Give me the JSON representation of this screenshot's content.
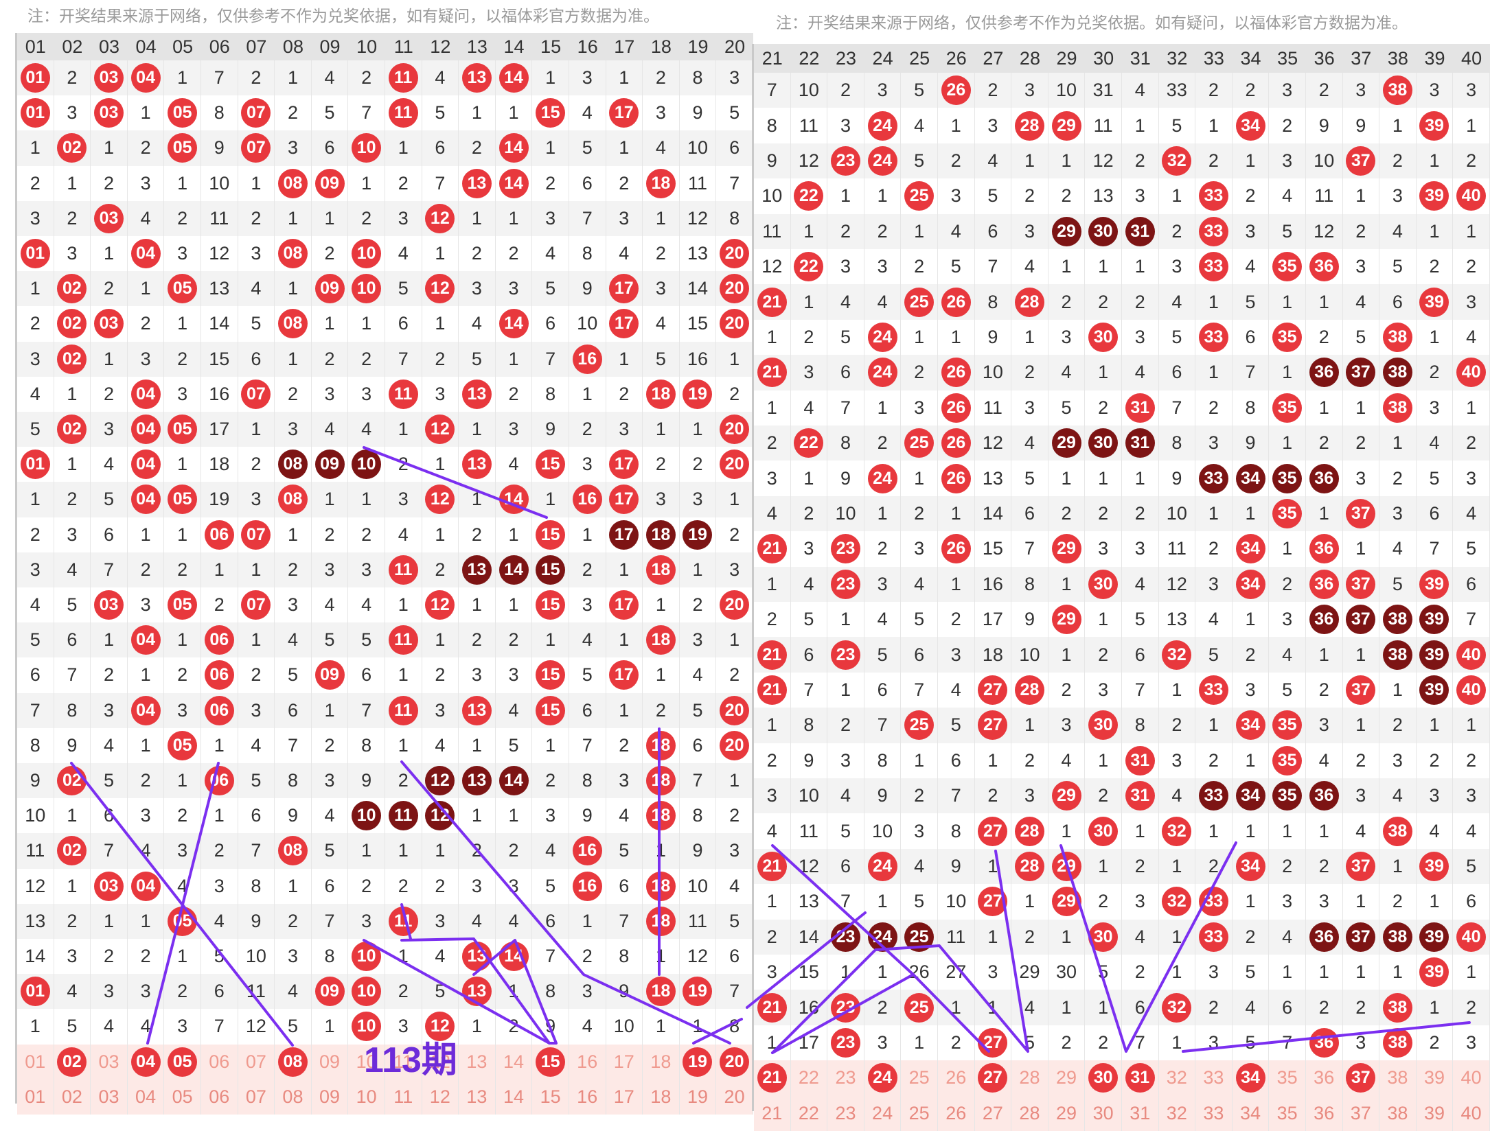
{
  "notes": {
    "left": "注：开奖结果来源于网络，仅供参考不作为兑奖依据，如有疑问，以福体彩官方数据为准。",
    "right": "注：开奖结果来源于网络，仅供参考不作为兑奖依据。如有疑问，以福体彩官方数据为准。"
  },
  "annotation_label": "113期",
  "colors": {
    "ball": "#e8383d",
    "ball_dark": "#7d1414",
    "line": "#7b2ff0",
    "header": "#e4e4e4",
    "pending": "#fde9e6"
  },
  "left_table": {
    "headers": [
      "01",
      "02",
      "03",
      "04",
      "05",
      "06",
      "07",
      "08",
      "09",
      "10",
      "11",
      "12",
      "13",
      "14",
      "15",
      "16",
      "17",
      "18",
      "19",
      "20"
    ],
    "rows": [
      [
        "01",
        "2",
        "03",
        "04",
        "1",
        "7",
        "2",
        "1",
        "4",
        "2",
        "11",
        "4",
        "13",
        "14",
        "1",
        "3",
        "1",
        "2",
        "8",
        "3"
      ],
      [
        "01",
        "3",
        "03",
        "1",
        "05",
        "8",
        "07",
        "2",
        "5",
        "7",
        "11",
        "5",
        "1",
        "1",
        "15",
        "4",
        "17",
        "3",
        "9",
        "5"
      ],
      [
        "1",
        "02",
        "1",
        "2",
        "05",
        "9",
        "07",
        "3",
        "6",
        "10",
        "1",
        "6",
        "2",
        "14",
        "1",
        "5",
        "1",
        "4",
        "10",
        "6"
      ],
      [
        "2",
        "1",
        "2",
        "3",
        "1",
        "10",
        "1",
        "08",
        "09",
        "1",
        "2",
        "7",
        "13",
        "14",
        "2",
        "6",
        "2",
        "18",
        "11",
        "7"
      ],
      [
        "3",
        "2",
        "03",
        "4",
        "2",
        "11",
        "2",
        "1",
        "1",
        "2",
        "3",
        "12",
        "1",
        "1",
        "3",
        "7",
        "3",
        "1",
        "12",
        "8"
      ],
      [
        "01",
        "3",
        "1",
        "04",
        "3",
        "12",
        "3",
        "08",
        "2",
        "10",
        "4",
        "1",
        "2",
        "2",
        "4",
        "8",
        "4",
        "2",
        "13",
        "20"
      ],
      [
        "1",
        "02",
        "2",
        "1",
        "05",
        "13",
        "4",
        "1",
        "09",
        "10",
        "5",
        "12",
        "3",
        "3",
        "5",
        "9",
        "17",
        "3",
        "14",
        "20"
      ],
      [
        "2",
        "02",
        "03",
        "2",
        "1",
        "14",
        "5",
        "08",
        "1",
        "1",
        "6",
        "1",
        "4",
        "14",
        "6",
        "10",
        "17",
        "4",
        "15",
        "20"
      ],
      [
        "3",
        "02",
        "1",
        "3",
        "2",
        "15",
        "6",
        "1",
        "2",
        "2",
        "7",
        "2",
        "5",
        "1",
        "7",
        "16",
        "1",
        "5",
        "16",
        "1"
      ],
      [
        "4",
        "1",
        "2",
        "04",
        "3",
        "16",
        "07",
        "2",
        "3",
        "3",
        "11",
        "3",
        "13",
        "2",
        "8",
        "1",
        "2",
        "18",
        "19",
        "2"
      ],
      [
        "5",
        "02",
        "3",
        "04",
        "05",
        "17",
        "1",
        "3",
        "4",
        "4",
        "1",
        "12",
        "1",
        "3",
        "9",
        "2",
        "3",
        "1",
        "1",
        "20"
      ],
      [
        "01",
        "1",
        "4",
        "04",
        "1",
        "18",
        "2",
        "08",
        "09",
        "10",
        "2",
        "1",
        "13",
        "4",
        "15",
        "3",
        "17",
        "2",
        "2",
        "20"
      ],
      [
        "1",
        "2",
        "5",
        "04",
        "05",
        "19",
        "3",
        "08",
        "1",
        "1",
        "3",
        "12",
        "1",
        "14",
        "1",
        "16",
        "17",
        "3",
        "3",
        "1"
      ],
      [
        "2",
        "3",
        "6",
        "1",
        "1",
        "06",
        "07",
        "1",
        "2",
        "2",
        "4",
        "1",
        "2",
        "1",
        "15",
        "1",
        "17",
        "18",
        "19",
        "2"
      ],
      [
        "3",
        "4",
        "7",
        "2",
        "2",
        "1",
        "1",
        "2",
        "3",
        "3",
        "11",
        "2",
        "13",
        "14",
        "15",
        "2",
        "1",
        "18",
        "1",
        "3"
      ],
      [
        "4",
        "5",
        "03",
        "3",
        "05",
        "2",
        "07",
        "3",
        "4",
        "4",
        "1",
        "12",
        "1",
        "1",
        "15",
        "3",
        "17",
        "1",
        "2",
        "20"
      ],
      [
        "5",
        "6",
        "1",
        "04",
        "1",
        "06",
        "1",
        "4",
        "5",
        "5",
        "11",
        "1",
        "2",
        "2",
        "1",
        "4",
        "1",
        "18",
        "3",
        "1"
      ],
      [
        "6",
        "7",
        "2",
        "1",
        "2",
        "06",
        "2",
        "5",
        "09",
        "6",
        "1",
        "2",
        "3",
        "3",
        "15",
        "5",
        "17",
        "1",
        "4",
        "2"
      ],
      [
        "7",
        "8",
        "3",
        "04",
        "3",
        "06",
        "3",
        "6",
        "1",
        "7",
        "11",
        "3",
        "13",
        "4",
        "15",
        "6",
        "1",
        "2",
        "5",
        "20"
      ],
      [
        "8",
        "9",
        "4",
        "1",
        "05",
        "1",
        "4",
        "7",
        "2",
        "8",
        "1",
        "4",
        "1",
        "5",
        "1",
        "7",
        "2",
        "18",
        "6",
        "20"
      ],
      [
        "9",
        "02",
        "5",
        "2",
        "1",
        "06",
        "5",
        "8",
        "3",
        "9",
        "2",
        "12",
        "13",
        "14",
        "2",
        "8",
        "3",
        "18",
        "7",
        "1"
      ],
      [
        "10",
        "1",
        "6",
        "3",
        "2",
        "1",
        "6",
        "9",
        "4",
        "10",
        "11",
        "12",
        "1",
        "1",
        "3",
        "9",
        "4",
        "18",
        "8",
        "2"
      ],
      [
        "11",
        "02",
        "7",
        "4",
        "3",
        "2",
        "7",
        "08",
        "5",
        "1",
        "1",
        "1",
        "2",
        "2",
        "4",
        "16",
        "5",
        "1",
        "9",
        "3"
      ],
      [
        "12",
        "1",
        "03",
        "04",
        "4",
        "3",
        "8",
        "1",
        "6",
        "2",
        "2",
        "2",
        "3",
        "3",
        "5",
        "16",
        "6",
        "18",
        "10",
        "4"
      ],
      [
        "13",
        "2",
        "1",
        "1",
        "05",
        "4",
        "9",
        "2",
        "7",
        "3",
        "11",
        "3",
        "4",
        "4",
        "6",
        "1",
        "7",
        "18",
        "11",
        "5"
      ],
      [
        "14",
        "3",
        "2",
        "2",
        "1",
        "5",
        "10",
        "3",
        "8",
        "10",
        "1",
        "4",
        "13",
        "14",
        "7",
        "2",
        "8",
        "1",
        "12",
        "6"
      ],
      [
        "01",
        "4",
        "3",
        "3",
        "2",
        "6",
        "11",
        "4",
        "09",
        "10",
        "2",
        "5",
        "13",
        "1",
        "8",
        "3",
        "9",
        "18",
        "19",
        "7"
      ],
      [
        "1",
        "5",
        "4",
        "4",
        "3",
        "7",
        "12",
        "5",
        "1",
        "10",
        "3",
        "12",
        "1",
        "2",
        "9",
        "4",
        "10",
        "1",
        "1",
        "8"
      ]
    ],
    "pending_row": [
      "01",
      "02",
      "03",
      "04",
      "05",
      "06",
      "07",
      "08",
      "09",
      "10",
      "11",
      "12",
      "13",
      "14",
      "15",
      "16",
      "17",
      "18",
      "19",
      "20"
    ],
    "footer": [
      "01",
      "02",
      "03",
      "04",
      "05",
      "06",
      "07",
      "08",
      "09",
      "10",
      "11",
      "12",
      "13",
      "14",
      "15",
      "16",
      "17",
      "18",
      "19",
      "20"
    ]
  },
  "right_table": {
    "headers": [
      "21",
      "22",
      "23",
      "24",
      "25",
      "26",
      "27",
      "28",
      "29",
      "30",
      "31",
      "32",
      "33",
      "34",
      "35",
      "36",
      "37",
      "38",
      "39",
      "40"
    ],
    "rows": [
      [
        "7",
        "10",
        "2",
        "3",
        "5",
        "26",
        "2",
        "3",
        "10",
        "31",
        "4",
        "33",
        "2",
        "2",
        "3",
        "2",
        "3",
        "38",
        "3",
        "3"
      ],
      [
        "8",
        "11",
        "3",
        "24",
        "4",
        "1",
        "3",
        "28",
        "29",
        "11",
        "1",
        "5",
        "1",
        "34",
        "2",
        "9",
        "9",
        "1",
        "39",
        "1"
      ],
      [
        "9",
        "12",
        "23",
        "24",
        "5",
        "2",
        "4",
        "1",
        "1",
        "12",
        "2",
        "32",
        "2",
        "1",
        "3",
        "10",
        "37",
        "2",
        "1",
        "2"
      ],
      [
        "10",
        "22",
        "1",
        "1",
        "25",
        "3",
        "5",
        "2",
        "2",
        "13",
        "3",
        "1",
        "33",
        "2",
        "4",
        "11",
        "1",
        "3",
        "39",
        "40"
      ],
      [
        "11",
        "1",
        "2",
        "2",
        "1",
        "4",
        "6",
        "3",
        "29",
        "30",
        "31",
        "2",
        "33",
        "3",
        "5",
        "12",
        "2",
        "4",
        "1",
        "1"
      ],
      [
        "12",
        "22",
        "3",
        "3",
        "2",
        "5",
        "7",
        "4",
        "1",
        "1",
        "1",
        "3",
        "33",
        "4",
        "35",
        "36",
        "3",
        "5",
        "2",
        "2"
      ],
      [
        "21",
        "1",
        "4",
        "4",
        "25",
        "26",
        "8",
        "28",
        "2",
        "2",
        "2",
        "4",
        "1",
        "5",
        "1",
        "1",
        "4",
        "6",
        "39",
        "3"
      ],
      [
        "1",
        "2",
        "5",
        "24",
        "1",
        "1",
        "9",
        "1",
        "3",
        "30",
        "3",
        "5",
        "33",
        "6",
        "35",
        "2",
        "5",
        "38",
        "1",
        "4"
      ],
      [
        "21",
        "3",
        "6",
        "24",
        "2",
        "26",
        "10",
        "2",
        "4",
        "1",
        "4",
        "6",
        "1",
        "7",
        "1",
        "36",
        "37",
        "38",
        "2",
        "40"
      ],
      [
        "1",
        "4",
        "7",
        "1",
        "3",
        "26",
        "11",
        "3",
        "5",
        "2",
        "31",
        "7",
        "2",
        "8",
        "35",
        "1",
        "1",
        "38",
        "3",
        "1"
      ],
      [
        "2",
        "22",
        "8",
        "2",
        "25",
        "26",
        "12",
        "4",
        "29",
        "30",
        "31",
        "8",
        "3",
        "9",
        "1",
        "2",
        "2",
        "1",
        "4",
        "2"
      ],
      [
        "3",
        "1",
        "9",
        "24",
        "1",
        "26",
        "13",
        "5",
        "1",
        "1",
        "1",
        "9",
        "33",
        "34",
        "35",
        "36",
        "3",
        "2",
        "5",
        "3"
      ],
      [
        "4",
        "2",
        "10",
        "1",
        "2",
        "1",
        "14",
        "6",
        "2",
        "2",
        "2",
        "10",
        "1",
        "1",
        "35",
        "1",
        "37",
        "3",
        "6",
        "4"
      ],
      [
        "21",
        "3",
        "23",
        "2",
        "3",
        "26",
        "15",
        "7",
        "29",
        "3",
        "3",
        "11",
        "2",
        "34",
        "1",
        "36",
        "1",
        "4",
        "7",
        "5"
      ],
      [
        "1",
        "4",
        "23",
        "3",
        "4",
        "1",
        "16",
        "8",
        "1",
        "30",
        "4",
        "12",
        "3",
        "34",
        "2",
        "36",
        "37",
        "5",
        "39",
        "6"
      ],
      [
        "2",
        "5",
        "1",
        "4",
        "5",
        "2",
        "17",
        "9",
        "29",
        "1",
        "5",
        "13",
        "4",
        "1",
        "3",
        "36",
        "37",
        "38",
        "39",
        "7"
      ],
      [
        "21",
        "6",
        "23",
        "5",
        "6",
        "3",
        "18",
        "10",
        "1",
        "2",
        "6",
        "32",
        "5",
        "2",
        "4",
        "1",
        "1",
        "38",
        "39",
        "40"
      ],
      [
        "21",
        "7",
        "1",
        "6",
        "7",
        "4",
        "27",
        "28",
        "2",
        "3",
        "7",
        "1",
        "33",
        "3",
        "5",
        "2",
        "37",
        "1",
        "39",
        "40"
      ],
      [
        "1",
        "8",
        "2",
        "7",
        "25",
        "5",
        "27",
        "1",
        "3",
        "30",
        "8",
        "2",
        "1",
        "34",
        "35",
        "3",
        "1",
        "2",
        "1",
        "1"
      ],
      [
        "2",
        "9",
        "3",
        "8",
        "1",
        "6",
        "1",
        "2",
        "4",
        "1",
        "31",
        "3",
        "2",
        "1",
        "35",
        "4",
        "2",
        "3",
        "2",
        "2"
      ],
      [
        "3",
        "10",
        "4",
        "9",
        "2",
        "7",
        "2",
        "3",
        "29",
        "2",
        "31",
        "4",
        "33",
        "34",
        "35",
        "36",
        "3",
        "4",
        "3",
        "3"
      ],
      [
        "4",
        "11",
        "5",
        "10",
        "3",
        "8",
        "27",
        "28",
        "1",
        "30",
        "1",
        "32",
        "1",
        "1",
        "1",
        "1",
        "4",
        "38",
        "4",
        "4"
      ],
      [
        "21",
        "12",
        "6",
        "24",
        "4",
        "9",
        "1",
        "28",
        "29",
        "1",
        "2",
        "1",
        "2",
        "34",
        "2",
        "2",
        "37",
        "1",
        "39",
        "5"
      ],
      [
        "1",
        "13",
        "7",
        "1",
        "5",
        "10",
        "27",
        "1",
        "29",
        "2",
        "3",
        "32",
        "33",
        "1",
        "3",
        "3",
        "1",
        "2",
        "1",
        "6"
      ],
      [
        "2",
        "14",
        "23",
        "24",
        "25",
        "11",
        "1",
        "2",
        "1",
        "30",
        "4",
        "1",
        "33",
        "2",
        "4",
        "36",
        "37",
        "38",
        "39",
        "40"
      ],
      [
        "3",
        "15",
        "1",
        "1",
        "26",
        "27",
        "3",
        "29",
        "30",
        "5",
        "2",
        "1",
        "3",
        "5",
        "1",
        "1",
        "1",
        "1",
        "39",
        "1"
      ],
      [
        "21",
        "16",
        "23",
        "2",
        "25",
        "1",
        "1",
        "4",
        "1",
        "1",
        "6",
        "32",
        "2",
        "4",
        "6",
        "2",
        "2",
        "38",
        "1",
        "2"
      ],
      [
        "1",
        "17",
        "23",
        "3",
        "1",
        "2",
        "27",
        "5",
        "2",
        "2",
        "7",
        "1",
        "3",
        "5",
        "7",
        "36",
        "3",
        "38",
        "2",
        "3"
      ]
    ],
    "pending_row": [
      "21",
      "22",
      "23",
      "24",
      "25",
      "26",
      "27",
      "28",
      "29",
      "30",
      "31",
      "32",
      "33",
      "34",
      "35",
      "36",
      "37",
      "38",
      "39",
      "40"
    ],
    "pending_hits": [
      "21",
      "24",
      "27",
      "30",
      "31",
      "34",
      "37"
    ],
    "footer": [
      "21",
      "22",
      "23",
      "24",
      "25",
      "26",
      "27",
      "28",
      "29",
      "30",
      "31",
      "32",
      "33",
      "34",
      "35",
      "36",
      "37",
      "38",
      "39",
      "40"
    ]
  },
  "left_pending_hits": [
    "02",
    "04",
    "05",
    "08",
    "15",
    "19",
    "20"
  ]
}
